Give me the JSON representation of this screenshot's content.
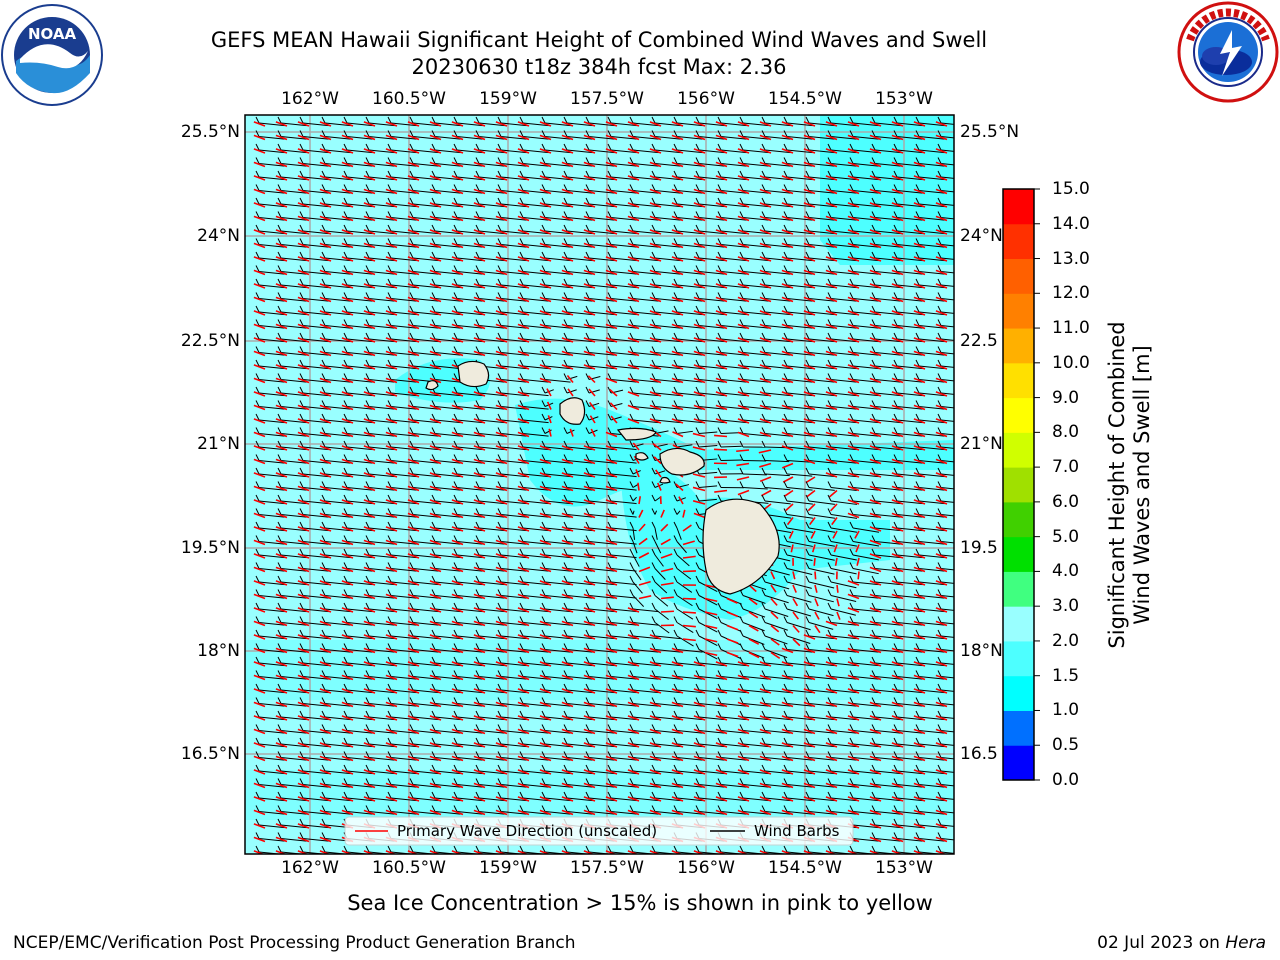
{
  "title_line1": "GEFS MEAN Hawaii Significant Height of Combined Wind Waves and Swell",
  "title_line2": "20230630 t18z 384h fcst   Max: 2.36",
  "logos": {
    "left": "noaa-logo",
    "right": "nws-logo"
  },
  "lon_ticks": [
    "162°W",
    "160.5°W",
    "159°W",
    "157.5°W",
    "156°W",
    "154.5°W",
    "153°W"
  ],
  "lat_ticks_left": [
    "25.5°N",
    "24°N",
    "22.5°N",
    "21°N",
    "19.5°N",
    "18°N",
    "16.5°N"
  ],
  "lat_ticks_right": [
    "25.5°N",
    "24°N",
    "22.5",
    "21°N",
    "19.5",
    "18°N",
    "16.5"
  ],
  "legend": {
    "wave_label": "Primary Wave Direction (unscaled)",
    "barb_label": "Wind Barbs"
  },
  "colorbar": {
    "label_line1": "Significant Height of Combined",
    "label_line2": "Wind Waves and Swell [m]",
    "ticks": [
      "0.0",
      "0.5",
      "1.0",
      "1.5",
      "2.0",
      "3.0",
      "4.0",
      "5.0",
      "6.0",
      "7.0",
      "8.0",
      "9.0",
      "10.0",
      "11.0",
      "12.0",
      "13.0",
      "14.0",
      "15.0"
    ],
    "colors": [
      "#0000ff",
      "#0070ff",
      "#00ffff",
      "#4dffff",
      "#99ffff",
      "#40ff80",
      "#00e000",
      "#40d000",
      "#a0e000",
      "#d0ff00",
      "#ffff00",
      "#ffe000",
      "#ffb000",
      "#ff8000",
      "#ff6000",
      "#ff3000",
      "#ff0000"
    ]
  },
  "map_colors": {
    "sea_base": "#99ffff",
    "sea_lower": "#4dffff",
    "land": "#efebdd",
    "wave_arrow": "#ff0000",
    "barb": "#000000"
  },
  "sea_ice_note": "Sea Ice Concentration > 15% is shown in pink to yellow",
  "footer_left": "NCEP/EMC/Verification Post Processing Product Generation Branch",
  "footer_right_date": "02 Jul 2023 on ",
  "footer_right_host": "Hera"
}
